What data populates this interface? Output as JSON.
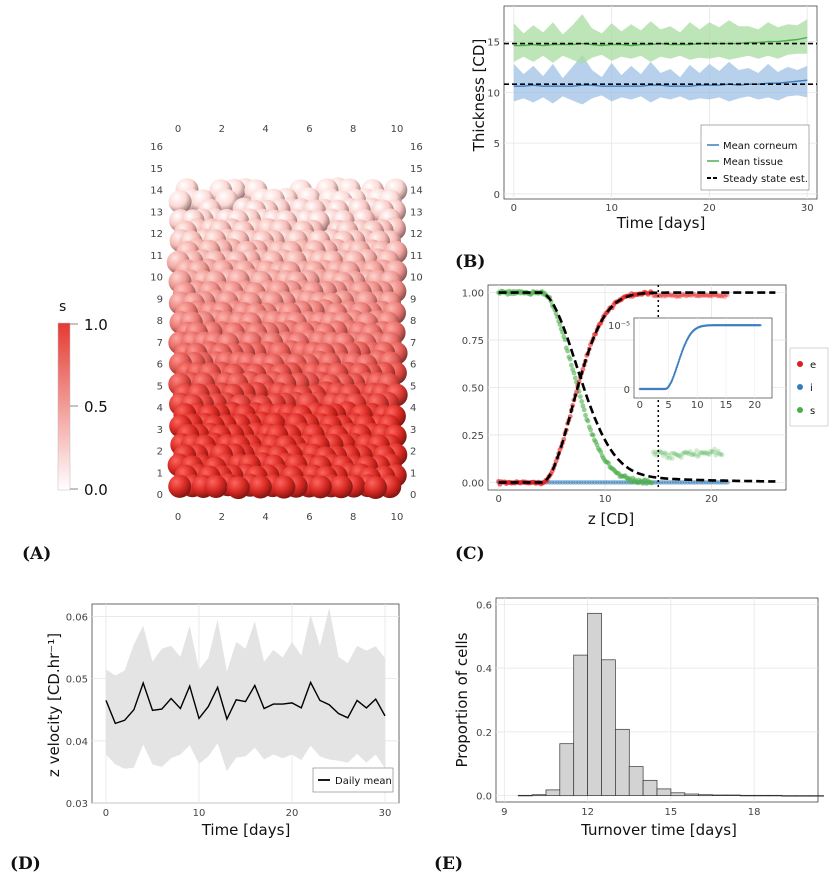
{
  "panel_labels": {
    "a": "(A)",
    "b": "(B)",
    "c": "(C)",
    "d": "(D)",
    "e": "(E)"
  },
  "chart_data": [
    {
      "id": "A",
      "type": "3d-render",
      "title": "",
      "colorbar": {
        "label": "s",
        "ticks": [
          "1.0",
          "0.5",
          "0.0"
        ],
        "colors": [
          "#e53a32",
          "#ffffff"
        ]
      },
      "x_ticks": [
        "0",
        "2",
        "4",
        "6",
        "8",
        "10"
      ],
      "y_ticks": [
        "0",
        "1",
        "2",
        "3",
        "4",
        "5",
        "6",
        "7",
        "8",
        "9",
        "10",
        "11",
        "12",
        "13",
        "14",
        "15",
        "16"
      ]
    },
    {
      "id": "B",
      "type": "line",
      "xlabel": "Time [days]",
      "ylabel": "Thickness [CD]",
      "xlim": [
        -1,
        31
      ],
      "ylim": [
        -0.5,
        18.5
      ],
      "x_ticks": [
        "0",
        "10",
        "20",
        "30"
      ],
      "y_ticks": [
        "0",
        "5",
        "10",
        "15"
      ],
      "x": [
        0,
        1,
        2,
        3,
        4,
        5,
        6,
        7,
        8,
        9,
        10,
        11,
        12,
        13,
        14,
        15,
        16,
        17,
        18,
        19,
        20,
        21,
        22,
        23,
        24,
        25,
        26,
        27,
        28,
        29,
        30
      ],
      "series": [
        {
          "name": "Mean corneum",
          "color": "#3a7dc1",
          "mean": [
            10.6,
            10.6,
            10.7,
            10.6,
            10.6,
            10.6,
            10.6,
            10.7,
            10.7,
            10.6,
            10.6,
            10.6,
            10.6,
            10.6,
            10.7,
            10.7,
            10.6,
            10.6,
            10.6,
            10.7,
            10.7,
            10.7,
            10.8,
            10.7,
            10.8,
            10.8,
            10.9,
            10.9,
            11.0,
            11.1,
            11.2
          ],
          "upper": [
            12.8,
            11.8,
            12.6,
            11.6,
            12.8,
            11.4,
            12.5,
            13.7,
            12.2,
            11.5,
            12.9,
            11.7,
            12.6,
            11.8,
            13.0,
            11.9,
            12.3,
            11.5,
            12.7,
            11.9,
            12.8,
            12.1,
            13.0,
            12.2,
            12.4,
            11.9,
            12.8,
            12.0,
            12.5,
            12.2,
            12.6
          ],
          "lower": [
            9.1,
            9.4,
            9.0,
            9.5,
            8.9,
            9.6,
            9.2,
            8.8,
            9.4,
            9.7,
            9.1,
            9.5,
            9.3,
            9.6,
            9.0,
            9.5,
            9.3,
            9.6,
            9.2,
            9.4,
            9.3,
            9.5,
            9.1,
            9.4,
            9.6,
            9.3,
            9.5,
            9.2,
            9.6,
            9.7,
            9.5
          ]
        },
        {
          "name": "Mean tissue",
          "color": "#4daf4a",
          "mean": [
            14.6,
            14.6,
            14.7,
            14.6,
            14.7,
            14.7,
            14.7,
            14.8,
            14.7,
            14.6,
            14.7,
            14.7,
            14.6,
            14.7,
            14.7,
            14.8,
            14.7,
            14.7,
            14.7,
            14.8,
            14.8,
            14.8,
            14.8,
            14.8,
            14.9,
            14.9,
            15.0,
            15.0,
            15.1,
            15.2,
            15.4
          ],
          "upper": [
            16.8,
            15.8,
            16.6,
            15.9,
            16.9,
            15.7,
            16.6,
            17.7,
            16.3,
            15.8,
            16.8,
            16.0,
            16.7,
            16.1,
            17.0,
            16.2,
            16.5,
            15.9,
            16.9,
            16.2,
            16.9,
            16.4,
            17.1,
            16.5,
            16.5,
            16.2,
            16.9,
            16.4,
            16.7,
            16.6,
            17.2
          ],
          "lower": [
            13.0,
            13.5,
            13.0,
            13.6,
            12.9,
            13.6,
            13.2,
            12.8,
            13.4,
            13.7,
            13.1,
            13.5,
            13.3,
            13.6,
            13.0,
            13.5,
            13.3,
            13.6,
            13.2,
            13.4,
            13.3,
            13.5,
            13.2,
            13.4,
            13.6,
            13.3,
            13.6,
            13.3,
            13.7,
            13.8,
            13.8
          ]
        },
        {
          "name": "Steady state est.",
          "color": "#000000",
          "dashed": true,
          "levels": [
            10.8,
            14.8
          ]
        }
      ],
      "legend": [
        "Mean corneum",
        "Mean tissue",
        "Steady state est."
      ],
      "legend_position": "bottom-right"
    },
    {
      "id": "C",
      "type": "scatter",
      "xlabel": "z [CD]",
      "ylabel": "",
      "xlim": [
        -1,
        27
      ],
      "ylim": [
        -0.04,
        1.04
      ],
      "x_ticks": [
        "0",
        "10",
        "20"
      ],
      "y_ticks": [
        "0.00",
        "0.25",
        "0.50",
        "0.75",
        "1.00"
      ],
      "vline": 15,
      "series": [
        {
          "name": "e",
          "color": "#e41a1c"
        },
        {
          "name": "i",
          "color": "#377eb8"
        },
        {
          "name": "s",
          "color": "#4daf4a"
        }
      ],
      "model_curves": {
        "e": "dashed sigmoid 0 to 1, onset z=4",
        "s": "dashed 1 to 0 decay, onset z=4"
      },
      "inset": {
        "x_ticks": [
          "0",
          "5",
          "10",
          "15",
          "20"
        ],
        "y_ticks": [
          "0",
          "10⁻⁵"
        ],
        "series": "i",
        "color": "#3a7dc1"
      }
    },
    {
      "id": "D",
      "type": "line",
      "xlabel": "Time [days]",
      "ylabel": "z velocity [CD.hr⁻¹]",
      "xlim": [
        -1.5,
        31.5
      ],
      "ylim": [
        0.03,
        0.062
      ],
      "x_ticks": [
        "0",
        "10",
        "20",
        "30"
      ],
      "y_ticks": [
        "0.03",
        "0.04",
        "0.05",
        "0.06"
      ],
      "x": [
        0,
        1,
        2,
        3,
        4,
        5,
        6,
        7,
        8,
        9,
        10,
        11,
        12,
        13,
        14,
        15,
        16,
        17,
        18,
        19,
        20,
        21,
        22,
        23,
        24,
        25,
        26,
        27,
        28,
        29,
        30
      ],
      "series": [
        {
          "name": "Daily mean",
          "color": "#000000",
          "values": [
            0.0465,
            0.0428,
            0.0433,
            0.045,
            0.0493,
            0.0449,
            0.0451,
            0.0468,
            0.0452,
            0.0488,
            0.0436,
            0.0455,
            0.0486,
            0.0435,
            0.0466,
            0.0463,
            0.0489,
            0.0452,
            0.0459,
            0.0459,
            0.0461,
            0.0453,
            0.0494,
            0.0465,
            0.0458,
            0.0444,
            0.0437,
            0.0465,
            0.0453,
            0.0467,
            0.044
          ],
          "upper": [
            0.0515,
            0.0505,
            0.0513,
            0.0555,
            0.0585,
            0.0527,
            0.0548,
            0.0553,
            0.0535,
            0.0585,
            0.0514,
            0.0533,
            0.0595,
            0.0511,
            0.0559,
            0.0548,
            0.0592,
            0.0527,
            0.0546,
            0.0534,
            0.0559,
            0.0537,
            0.0603,
            0.0552,
            0.0614,
            0.0535,
            0.0525,
            0.0553,
            0.0545,
            0.0552,
            0.0533
          ],
          "lower": [
            0.0378,
            0.0362,
            0.0355,
            0.0357,
            0.0394,
            0.0362,
            0.0358,
            0.0372,
            0.0378,
            0.0393,
            0.0363,
            0.0375,
            0.0396,
            0.0351,
            0.0373,
            0.0375,
            0.0389,
            0.037,
            0.0378,
            0.0372,
            0.0378,
            0.0369,
            0.0392,
            0.0375,
            0.037,
            0.0368,
            0.0365,
            0.0379,
            0.0365,
            0.0378,
            0.0356
          ]
        }
      ],
      "band_color": "#e4e4e4",
      "legend": [
        "Daily mean"
      ],
      "legend_position": "bottom-right"
    },
    {
      "id": "E",
      "type": "bar",
      "xlabel": "Turnover time [days]",
      "ylabel": "Proportion of cells",
      "xlim": [
        8.7,
        20.3
      ],
      "ylim": [
        -0.02,
        0.62
      ],
      "x_ticks": [
        "9",
        "12",
        "15",
        "18"
      ],
      "y_ticks": [
        "0.0",
        "0.2",
        "0.4",
        "0.6"
      ],
      "bin_start": 9.5,
      "bin_width": 0.5,
      "values": [
        0.001,
        0.003,
        0.018,
        0.163,
        0.441,
        0.572,
        0.426,
        0.208,
        0.091,
        0.048,
        0.021,
        0.009,
        0.005,
        0.003,
        0.002,
        0.002,
        0.001,
        0.001,
        0.001,
        0.0,
        0.0,
        0.0
      ],
      "bar_color": "#d3d3d3"
    }
  ]
}
